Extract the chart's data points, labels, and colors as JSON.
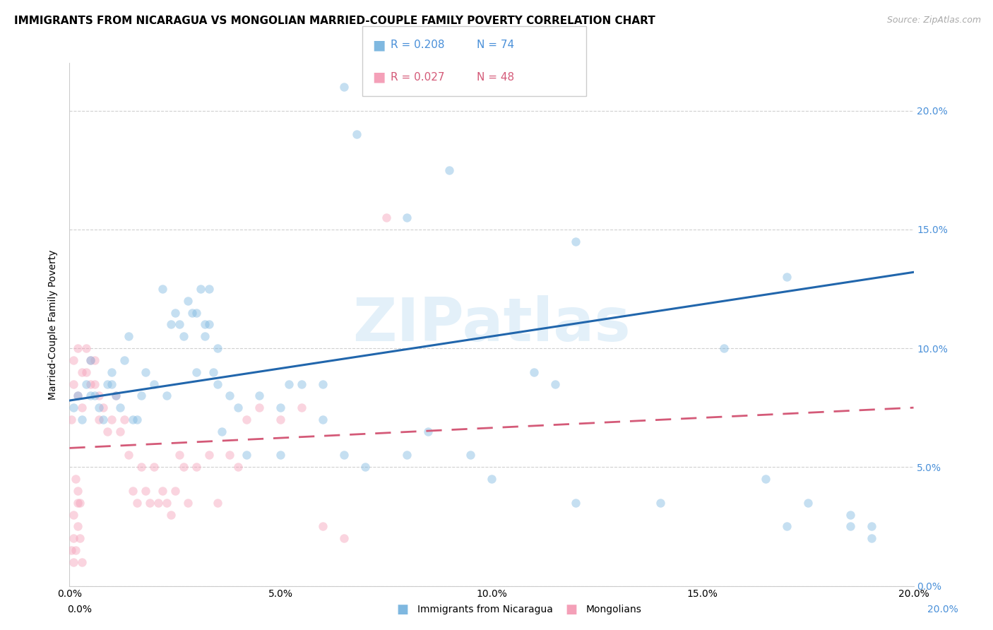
{
  "title": "IMMIGRANTS FROM NICARAGUA VS MONGOLIAN MARRIED-COUPLE FAMILY POVERTY CORRELATION CHART",
  "source": "Source: ZipAtlas.com",
  "ylabel": "Married-Couple Family Poverty",
  "legend_blue_r": "R = 0.208",
  "legend_blue_n": "N = 74",
  "legend_pink_r": "R = 0.027",
  "legend_pink_n": "N = 48",
  "legend_blue_label": "Immigrants from Nicaragua",
  "legend_pink_label": "Mongolians",
  "watermark": "ZIPatlas",
  "xlim": [
    0.0,
    20.0
  ],
  "ylim": [
    0.0,
    22.0
  ],
  "yticks": [
    0.0,
    5.0,
    10.0,
    15.0,
    20.0
  ],
  "xticks": [
    0.0,
    5.0,
    10.0,
    15.0,
    20.0
  ],
  "blue_color": "#7fb8e0",
  "blue_line_color": "#2166ac",
  "pink_color": "#f4a0b8",
  "pink_line_color": "#d45a78",
  "blue_scatter_x": [
    0.1,
    0.2,
    0.3,
    0.4,
    0.5,
    0.5,
    0.6,
    0.7,
    0.8,
    0.9,
    1.0,
    1.0,
    1.1,
    1.2,
    1.3,
    1.4,
    1.5,
    1.6,
    1.7,
    1.8,
    2.0,
    2.2,
    2.3,
    2.4,
    2.5,
    2.6,
    2.7,
    2.8,
    2.9,
    3.0,
    3.0,
    3.1,
    3.2,
    3.2,
    3.3,
    3.3,
    3.4,
    3.5,
    3.5,
    3.6,
    3.8,
    4.0,
    4.2,
    4.5,
    5.0,
    5.0,
    5.2,
    5.5,
    6.0,
    6.0,
    6.5,
    7.0,
    8.0,
    8.5,
    9.5,
    10.0,
    11.0,
    11.5,
    12.0,
    14.0,
    15.5,
    16.5,
    17.0,
    17.5,
    18.5,
    18.5,
    19.0,
    19.0,
    6.5,
    6.8,
    8.0,
    9.0,
    12.0,
    17.0
  ],
  "blue_scatter_y": [
    7.5,
    8.0,
    7.0,
    8.5,
    8.0,
    9.5,
    8.0,
    7.5,
    7.0,
    8.5,
    8.5,
    9.0,
    8.0,
    7.5,
    9.5,
    10.5,
    7.0,
    7.0,
    8.0,
    9.0,
    8.5,
    12.5,
    8.0,
    11.0,
    11.5,
    11.0,
    10.5,
    12.0,
    11.5,
    9.0,
    11.5,
    12.5,
    11.0,
    10.5,
    11.0,
    12.5,
    9.0,
    10.0,
    8.5,
    6.5,
    8.0,
    7.5,
    5.5,
    8.0,
    7.5,
    5.5,
    8.5,
    8.5,
    8.5,
    7.0,
    5.5,
    5.0,
    5.5,
    6.5,
    5.5,
    4.5,
    9.0,
    8.5,
    3.5,
    3.5,
    10.0,
    4.5,
    2.5,
    3.5,
    2.5,
    3.0,
    2.5,
    2.0,
    21.0,
    19.0,
    15.5,
    17.5,
    14.5,
    13.0
  ],
  "pink_scatter_x": [
    0.05,
    0.1,
    0.1,
    0.2,
    0.2,
    0.3,
    0.3,
    0.4,
    0.4,
    0.5,
    0.5,
    0.6,
    0.6,
    0.7,
    0.7,
    0.8,
    0.9,
    1.0,
    1.1,
    1.2,
    1.3,
    1.4,
    1.5,
    1.6,
    1.7,
    1.8,
    1.9,
    2.0,
    2.1,
    2.2,
    2.3,
    2.4,
    2.5,
    2.6,
    2.7,
    2.8,
    3.0,
    3.3,
    3.5,
    3.8,
    4.0,
    4.2,
    4.5,
    5.0,
    5.5,
    6.0,
    6.5,
    7.5
  ],
  "pink_scatter_y": [
    7.0,
    9.5,
    8.5,
    8.0,
    10.0,
    7.5,
    9.0,
    9.0,
    10.0,
    8.5,
    9.5,
    9.5,
    8.5,
    7.0,
    8.0,
    7.5,
    6.5,
    7.0,
    8.0,
    6.5,
    7.0,
    5.5,
    4.0,
    3.5,
    5.0,
    4.0,
    3.5,
    5.0,
    3.5,
    4.0,
    3.5,
    3.0,
    4.0,
    5.5,
    5.0,
    3.5,
    5.0,
    5.5,
    3.5,
    5.5,
    5.0,
    7.0,
    7.5,
    7.0,
    7.5,
    2.5,
    2.0,
    15.5
  ],
  "pink_cluster_x": [
    0.05,
    0.1,
    0.15,
    0.1,
    0.2,
    0.2,
    0.15,
    0.1,
    0.25,
    0.3,
    0.2,
    0.25
  ],
  "pink_cluster_y": [
    1.5,
    2.0,
    1.5,
    3.0,
    2.5,
    3.5,
    4.5,
    1.0,
    2.0,
    1.0,
    4.0,
    3.5
  ],
  "blue_line_x": [
    0.0,
    20.0
  ],
  "blue_line_y": [
    7.8,
    13.2
  ],
  "pink_line_x": [
    0.0,
    20.0
  ],
  "pink_line_y": [
    5.8,
    7.5
  ],
  "background_color": "#ffffff",
  "grid_color": "#d0d0d0",
  "title_fontsize": 11,
  "axis_fontsize": 10,
  "tick_fontsize": 10,
  "scatter_size": 80,
  "scatter_alpha": 0.45
}
